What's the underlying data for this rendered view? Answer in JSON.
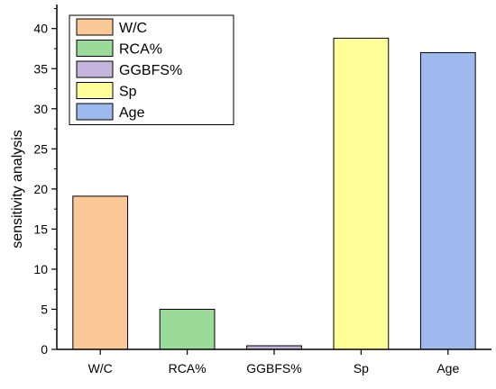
{
  "chart_data": {
    "type": "bar",
    "title": "",
    "xlabel": "",
    "ylabel": "sensitivity analysis",
    "categories": [
      "W/C",
      "RCA%",
      "GGBFS%",
      "Sp",
      "Age"
    ],
    "values": [
      19.1,
      5.0,
      0.45,
      38.8,
      37.0
    ],
    "colors": [
      "#FBC898",
      "#9ADB9A",
      "#C4B5DC",
      "#FFFF99",
      "#9DB9EE"
    ],
    "ylim": [
      0,
      43
    ],
    "yticks": [
      "0",
      "5",
      "10",
      "15",
      "20",
      "25",
      "30",
      "35",
      "40"
    ],
    "grid": false,
    "legend": {
      "position": "top-left",
      "entries": [
        "W/C",
        "RCA%",
        "GGBFS%",
        "Sp",
        "Age"
      ]
    }
  }
}
